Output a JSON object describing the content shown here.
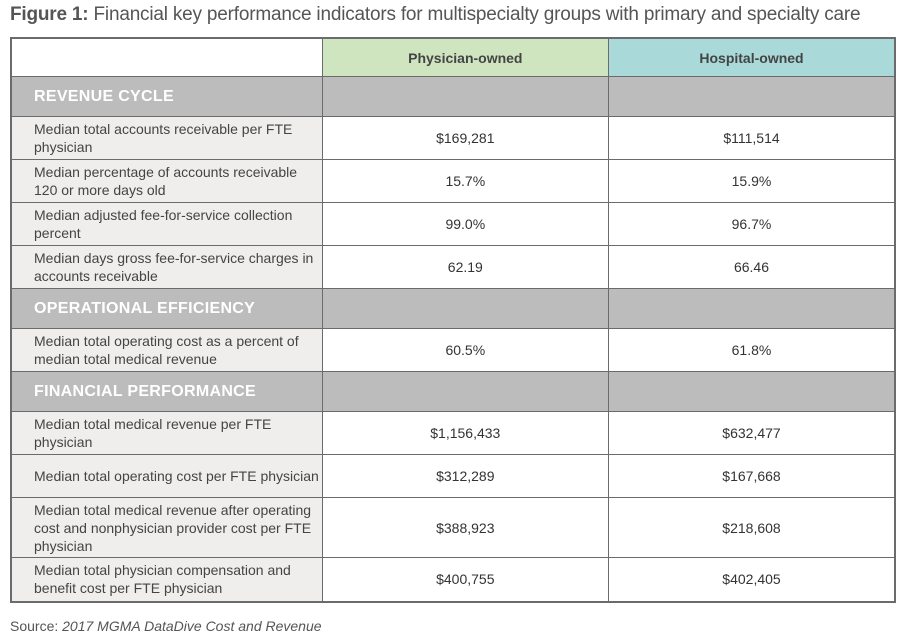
{
  "figure": {
    "label": "Figure 1:",
    "title": "Financial key performance indicators for multispecialty groups with primary and specialty care"
  },
  "columns": [
    "Physician-owned",
    "Hospital-owned"
  ],
  "sections": [
    {
      "name": "REVENUE CYCLE",
      "rows": [
        {
          "label": "Median total accounts receivable per FTE physician",
          "physician": "$169,281",
          "hospital": "$111,514"
        },
        {
          "label": "Median percentage of accounts receivable 120 or more days old",
          "physician": "15.7%",
          "hospital": "15.9%"
        },
        {
          "label": "Median adjusted fee-for-service collection percent",
          "physician": "99.0%",
          "hospital": "96.7%"
        },
        {
          "label": "Median days gross fee-for-service charges in accounts receivable",
          "physician": "62.19",
          "hospital": "66.46"
        }
      ]
    },
    {
      "name": "OPERATIONAL EFFICIENCY",
      "rows": [
        {
          "label": "Median total operating cost as a percent of median total medical revenue",
          "physician": "60.5%",
          "hospital": "61.8%"
        }
      ]
    },
    {
      "name": "FINANCIAL PERFORMANCE",
      "rows": [
        {
          "label": "Median total medical revenue per FTE physician",
          "physician": "$1,156,433",
          "hospital": "$632,477"
        },
        {
          "label": "Median total operating cost per FTE physician",
          "physician": "$312,289",
          "hospital": "$167,668"
        },
        {
          "label": "Median total medical revenue after operating cost and nonphysician provider cost per FTE physician",
          "physician": "$388,923",
          "hospital": "$218,608"
        },
        {
          "label": "Median total physician compensation and benefit cost per FTE physician",
          "physician": "$400,755",
          "hospital": "$402,405"
        }
      ]
    }
  ],
  "source": {
    "prefix": "Source:",
    "text": "2017 MGMA DataDive Cost and Revenue"
  },
  "colors": {
    "physician_header": "#cfe5bf",
    "hospital_header": "#a9d9d8",
    "section_band": "#bcbcbc",
    "label_cell": "#efeeed"
  }
}
